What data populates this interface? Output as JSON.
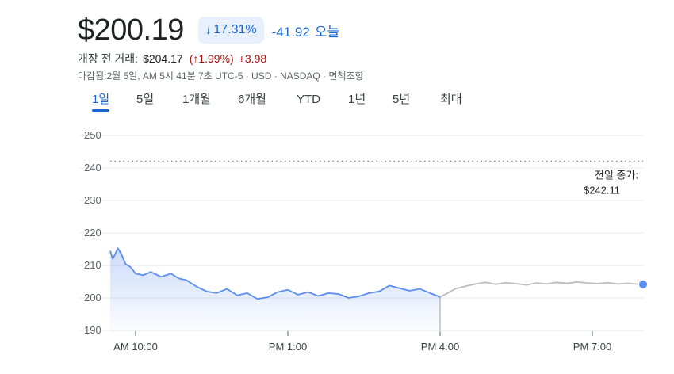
{
  "quote": {
    "price": "$200.19",
    "change_pct": "17.31%",
    "change_arrow": "↓",
    "change_abs": "-41.92",
    "change_period": "오늘"
  },
  "premarket": {
    "label": "개장 전 거래:",
    "price": "$204.17",
    "pct": "(↑1.99%)",
    "change": "+3.98"
  },
  "meta_line": "마감됨:2월 5일, AM 5시 41분 7초 UTC-5 · USD · NASDAQ · 면책조항",
  "tabs": [
    {
      "label": "1일",
      "active": true
    },
    {
      "label": "5일",
      "active": false
    },
    {
      "label": "1개월",
      "active": false
    },
    {
      "label": "6개월",
      "active": false
    },
    {
      "label": "YTD",
      "active": false
    },
    {
      "label": "1년",
      "active": false
    },
    {
      "label": "5년",
      "active": false
    },
    {
      "label": "최대",
      "active": false
    }
  ],
  "colors": {
    "accent": "#1967d2",
    "regular_line": "#5b8ef0",
    "after_hours_line": "#bdbdbd",
    "negative": "#a50e0e",
    "prev_close_dots": "#80868b"
  },
  "chart_data": {
    "type": "line",
    "title": "",
    "xlabel": "",
    "ylabel": "",
    "ylim": [
      190,
      250
    ],
    "yticks": [
      190,
      200,
      210,
      220,
      230,
      240,
      250
    ],
    "xlim_hours": [
      9.5,
      20.0
    ],
    "xtick_hours": [
      10,
      13,
      16,
      19
    ],
    "xticks": [
      "AM 10:00",
      "PM 1:00",
      "PM 4:00",
      "PM 7:00"
    ],
    "grid": true,
    "previous_close": {
      "label_line1": "전일 종가:",
      "label_line2": "$242.11",
      "value": 242.11
    },
    "series": [
      {
        "segment": "regular",
        "x_hours": [
          9.5,
          9.55,
          9.65,
          9.72,
          9.8,
          9.9,
          10.0,
          10.15,
          10.3,
          10.5,
          10.7,
          10.85,
          11.0,
          11.2,
          11.4,
          11.6,
          11.8,
          12.0,
          12.2,
          12.4,
          12.6,
          12.8,
          13.0,
          13.2,
          13.4,
          13.6,
          13.8,
          14.0,
          14.2,
          14.4,
          14.6,
          14.8,
          15.0,
          15.2,
          15.4,
          15.6,
          15.8,
          16.0
        ],
        "values": [
          214.5,
          212.0,
          215.3,
          213.5,
          210.5,
          209.5,
          207.5,
          207.0,
          208.0,
          206.5,
          207.5,
          206.0,
          205.5,
          203.5,
          202.0,
          201.5,
          202.8,
          200.8,
          201.5,
          199.7,
          200.2,
          201.8,
          202.5,
          201.0,
          201.8,
          200.6,
          201.5,
          201.2,
          200.0,
          200.5,
          201.5,
          202.0,
          203.8,
          203.0,
          202.2,
          202.8,
          201.5,
          200.3
        ]
      },
      {
        "segment": "after_hours",
        "x_hours": [
          16.0,
          16.15,
          16.3,
          16.5,
          16.7,
          16.9,
          17.1,
          17.3,
          17.5,
          17.7,
          17.9,
          18.1,
          18.3,
          18.5,
          18.7,
          18.9,
          19.1,
          19.3,
          19.5,
          19.7,
          19.85,
          20.0
        ],
        "values": [
          200.3,
          201.5,
          202.8,
          203.6,
          204.3,
          204.8,
          204.2,
          204.7,
          204.4,
          204.0,
          204.6,
          204.3,
          204.8,
          204.5,
          204.9,
          204.6,
          204.4,
          204.7,
          204.3,
          204.5,
          204.3,
          204.17
        ]
      }
    ]
  }
}
